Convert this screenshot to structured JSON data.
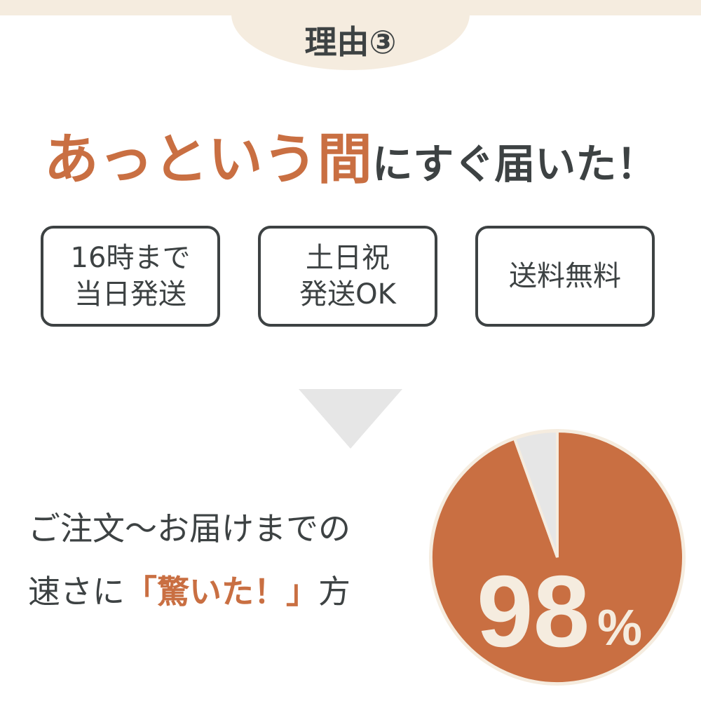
{
  "header": {
    "title": "理由③"
  },
  "headline": {
    "accent": "あっという間",
    "rest": "にすぐ届いた！"
  },
  "features": [
    {
      "label": "16時まで\n当日発送"
    },
    {
      "label": "土日祝\n発送OK"
    },
    {
      "label": "送料無料"
    }
  ],
  "claim": {
    "line1": "ご注文〜お届けまでの",
    "line2_prefix": "速さに",
    "line2_accent": "「驚いた！」",
    "line2_suffix": "方"
  },
  "chart_data": {
    "type": "pie",
    "values": [
      98,
      2
    ],
    "label_number": "98",
    "label_unit": "%",
    "colors": [
      "#c96f42",
      "#e6e6e6"
    ],
    "border_color": "#f5ecdf"
  }
}
